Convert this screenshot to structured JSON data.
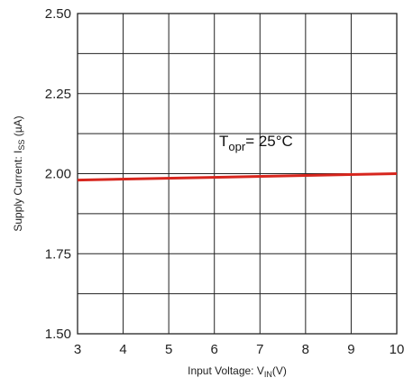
{
  "chart_data": {
    "type": "line",
    "xlabel": {
      "prefix": "Input Voltage: V",
      "sub": "IN",
      "suffix": "(V)"
    },
    "ylabel": {
      "prefix": "Supply Current: I",
      "sub": "SS",
      "suffix": " (µA)"
    },
    "xlim": [
      3,
      10
    ],
    "ylim": [
      1.5,
      2.5
    ],
    "x_ticks": [
      "3",
      "4",
      "5",
      "6",
      "7",
      "8",
      "9",
      "10"
    ],
    "y_ticks": [
      "1.50",
      "1.75",
      "2.00",
      "2.25",
      "2.50"
    ],
    "grid": true,
    "series": [
      {
        "x": [
          3,
          10
        ],
        "y": [
          1.98,
          2.0
        ],
        "color": "#d7261e"
      }
    ],
    "annotation": {
      "main": "T",
      "sub": "opr",
      "rest": "= 25°C",
      "x": 6.5,
      "y": 2.05
    }
  }
}
